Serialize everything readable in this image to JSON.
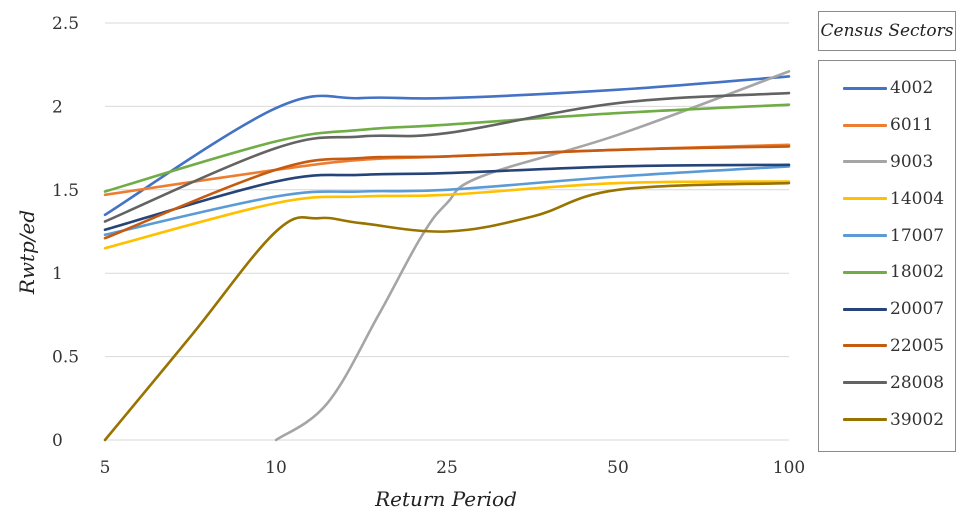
{
  "chart_data": {
    "type": "line",
    "xlabel": "Return Period",
    "ylabel": "Rwtp/ed",
    "categories": [
      "5",
      "10",
      "25",
      "50",
      "100"
    ],
    "ylim": [
      0,
      2.5
    ],
    "yticks": [
      "0",
      "0.5",
      "1",
      "1.5",
      "2",
      "2.5"
    ],
    "grid": "horizontal",
    "legend": {
      "title": "Census Sectors",
      "position": "right"
    },
    "series": [
      {
        "name": "4002",
        "color": "#4472C4",
        "points": [
          [
            0,
            1.35
          ],
          [
            1,
            1.99
          ],
          [
            1.5,
            2.05
          ],
          [
            2,
            2.05
          ],
          [
            3,
            2.1
          ],
          [
            4,
            2.18
          ]
        ]
      },
      {
        "name": "6011",
        "color": "#ED7D31",
        "points": [
          [
            0,
            1.47
          ],
          [
            1,
            1.62
          ],
          [
            1.5,
            1.68
          ],
          [
            2,
            1.7
          ],
          [
            3,
            1.74
          ],
          [
            4,
            1.77
          ]
        ]
      },
      {
        "name": "9003",
        "color": "#A5A5A5",
        "points": [
          [
            1,
            0.0
          ],
          [
            1.3,
            0.22
          ],
          [
            1.6,
            0.75
          ],
          [
            1.85,
            1.22
          ],
          [
            2,
            1.42
          ],
          [
            2.2,
            1.58
          ],
          [
            3,
            1.83
          ],
          [
            4,
            2.21
          ]
        ]
      },
      {
        "name": "14004",
        "color": "#FFC000",
        "points": [
          [
            0,
            1.15
          ],
          [
            1,
            1.42
          ],
          [
            1.5,
            1.46
          ],
          [
            2,
            1.47
          ],
          [
            3,
            1.54
          ],
          [
            4,
            1.55
          ]
        ]
      },
      {
        "name": "17007",
        "color": "#5B9BD5",
        "points": [
          [
            0,
            1.23
          ],
          [
            1,
            1.46
          ],
          [
            1.5,
            1.49
          ],
          [
            2,
            1.5
          ],
          [
            3,
            1.58
          ],
          [
            4,
            1.64
          ]
        ]
      },
      {
        "name": "18002",
        "color": "#70AD47",
        "points": [
          [
            0,
            1.49
          ],
          [
            1,
            1.79
          ],
          [
            1.5,
            1.86
          ],
          [
            2,
            1.89
          ],
          [
            3,
            1.96
          ],
          [
            4,
            2.01
          ]
        ]
      },
      {
        "name": "20007",
        "color": "#264478",
        "points": [
          [
            0,
            1.26
          ],
          [
            1,
            1.55
          ],
          [
            1.5,
            1.59
          ],
          [
            2,
            1.6
          ],
          [
            3,
            1.64
          ],
          [
            4,
            1.65
          ]
        ]
      },
      {
        "name": "22005",
        "color": "#C55A11",
        "points": [
          [
            0,
            1.21
          ],
          [
            1,
            1.62
          ],
          [
            1.5,
            1.69
          ],
          [
            2,
            1.7
          ],
          [
            3,
            1.74
          ],
          [
            4,
            1.76
          ]
        ]
      },
      {
        "name": "28008",
        "color": "#636363",
        "points": [
          [
            0,
            1.31
          ],
          [
            1,
            1.75
          ],
          [
            1.5,
            1.82
          ],
          [
            2,
            1.84
          ],
          [
            3,
            2.02
          ],
          [
            4,
            2.08
          ]
        ]
      },
      {
        "name": "39002",
        "color": "#997300",
        "points": [
          [
            0,
            0.0
          ],
          [
            0.5,
            0.62
          ],
          [
            1,
            1.25
          ],
          [
            1.25,
            1.33
          ],
          [
            1.5,
            1.3
          ],
          [
            2,
            1.25
          ],
          [
            2.5,
            1.34
          ],
          [
            3,
            1.5
          ],
          [
            4,
            1.54
          ]
        ]
      }
    ]
  }
}
